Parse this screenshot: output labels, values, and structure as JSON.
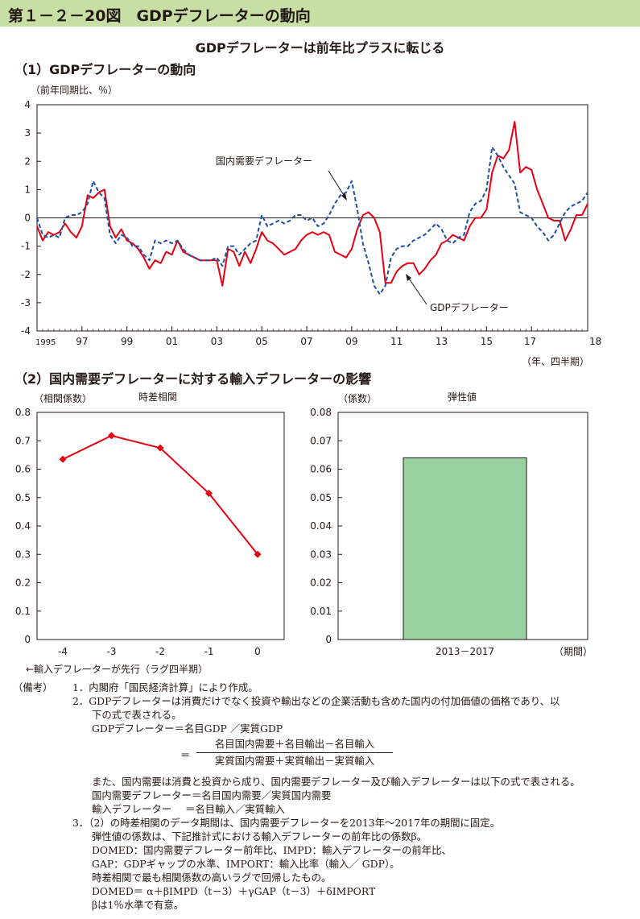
{
  "header": {
    "figure_title": "第１－２－20図　GDPデフレーターの動向",
    "headline": "GDPデフレーターは前年比プラスに転じる",
    "accent_color": "#c7dfa5"
  },
  "panel1": {
    "section_title": "（1）GDPデフレーターの動向",
    "y_unit": "（前年同期比、％）",
    "x_unit": "（年、四半期）"
  },
  "panel2": {
    "section_title": "（2）国内需要デフレーターに対する輸入デフレーターの影響",
    "left_title": "時差相関",
    "left_unit": "（相関係数）",
    "left_note": "←輸入デフレーターが先行（ラグ四半期）",
    "right_title": "弾性値",
    "right_unit": "（係数）",
    "right_xunit": "（期間）"
  },
  "chart_data": [
    {
      "type": "line",
      "ylim": [
        -4,
        4
      ],
      "yticks": [
        "4",
        "3",
        "2",
        "1",
        "0",
        "-1",
        "-2",
        "-3",
        "-4"
      ],
      "xticks": [
        "1995",
        "97",
        "99",
        "01",
        "03",
        "05",
        "07",
        "09",
        "11",
        "13",
        "15",
        "17",
        "18"
      ],
      "x_start": "1995 Q1",
      "grid": false,
      "series": [
        {
          "name": "GDPデフレーター",
          "color": "#e60012",
          "style": "solid",
          "values": [
            -0.3,
            -0.8,
            -0.5,
            -0.6,
            -0.5,
            -0.2,
            -0.5,
            -0.7,
            -0.3,
            0.8,
            0.7,
            0.9,
            1.0,
            -0.3,
            -0.7,
            -0.4,
            -0.8,
            -0.9,
            -1.1,
            -1.4,
            -1.8,
            -1.5,
            -1.6,
            -1.2,
            -1.3,
            -0.8,
            -1.2,
            -1.3,
            -1.4,
            -1.5,
            -1.5,
            -1.5,
            -1.5,
            -2.4,
            -1.1,
            -1.2,
            -1.7,
            -1.2,
            -1.6,
            -1.1,
            -0.5,
            -0.8,
            -0.9,
            -1.1,
            -1.3,
            -1.2,
            -1.1,
            -0.8,
            -0.6,
            -0.5,
            -0.6,
            -0.5,
            -0.6,
            -1.2,
            -1.3,
            -1.4,
            -1.1,
            -0.4,
            0.1,
            0.2,
            0.0,
            -0.5,
            -2.3,
            -2.3,
            -1.9,
            -1.7,
            -1.6,
            -1.6,
            -2.0,
            -1.8,
            -1.5,
            -1.3,
            -0.9,
            -0.8,
            -0.6,
            -0.7,
            -0.8,
            -0.3,
            0.0,
            0.0,
            0.3,
            1.6,
            2.2,
            2.1,
            2.4,
            3.4,
            1.6,
            1.8,
            1.7,
            1.0,
            0.5,
            0.0,
            -0.1,
            -0.1,
            -0.8,
            -0.4,
            0.1,
            0.1,
            0.5
          ]
        },
        {
          "name": "国内需要デフレーター",
          "color": "#1d50a2",
          "style": "dashed",
          "values": [
            0.0,
            -0.6,
            -0.7,
            -0.6,
            -0.7,
            0.0,
            0.1,
            0.1,
            0.2,
            0.5,
            1.3,
            0.9,
            0.7,
            -0.6,
            -0.9,
            -0.6,
            -0.7,
            -1.0,
            -1.0,
            -1.3,
            -1.5,
            -0.8,
            -0.9,
            -0.8,
            -0.9,
            -0.8,
            -1.1,
            -1.3,
            -1.4,
            -1.5,
            -1.5,
            -1.5,
            -1.4,
            -1.7,
            -1.0,
            -1.0,
            -1.3,
            -1.1,
            -0.9,
            -0.8,
            0.1,
            -0.3,
            -0.2,
            -0.1,
            -0.2,
            -0.1,
            0.1,
            0.1,
            -0.1,
            0.0,
            -0.3,
            -0.2,
            0.1,
            0.5,
            0.8,
            0.9,
            1.3,
            0.3,
            -0.9,
            -1.6,
            -2.4,
            -2.7,
            -2.4,
            -1.4,
            -1.1,
            -1.0,
            -1.0,
            -0.8,
            -0.7,
            -0.6,
            -0.4,
            -0.2,
            -0.4,
            -0.8,
            -0.9,
            -0.7,
            -0.6,
            0.2,
            0.5,
            0.6,
            1.0,
            2.5,
            2.2,
            1.8,
            1.5,
            1.2,
            0.2,
            0.1,
            0.0,
            -0.3,
            -0.5,
            -0.8,
            -0.6,
            -0.2,
            0.2,
            0.4,
            0.5,
            0.6,
            0.9
          ]
        }
      ],
      "annotations": [
        "国内需要デフレーター",
        "GDPデフレーター"
      ]
    },
    {
      "type": "line",
      "categories": [
        "-4",
        "-3",
        "-2",
        "-1",
        "0"
      ],
      "values": [
        0.635,
        0.718,
        0.675,
        0.515,
        0.3
      ],
      "ylim": [
        0,
        0.8
      ],
      "yticks": [
        "0.8",
        "0.7",
        "0.6",
        "0.5",
        "0.4",
        "0.3",
        "0.2",
        "0.1",
        "0"
      ],
      "color": "#e60012",
      "marker": "diamond"
    },
    {
      "type": "bar",
      "categories": [
        "2013－2017"
      ],
      "values": [
        0.064
      ],
      "ylim": [
        0,
        0.08
      ],
      "yticks": [
        "0.08",
        "0.07",
        "0.06",
        "0.05",
        "0.04",
        "0.03",
        "0.02",
        "0.01",
        "0"
      ],
      "color": "#99d1a0"
    }
  ],
  "notes": {
    "prefix": "（備考）",
    "n1": "1．内閣府「国民経済計算」により作成。",
    "n2a": "2．GDPデフレーターは消費だけでなく投資や輸出などの企業活動も含めた国内の付加価値の価格であり、以",
    "n2b": "下の式で表される。",
    "f1": "GDPデフレーター＝名目GDP ／実質GDP",
    "f2_eq": "＝",
    "f2_num": "名目国内需要＋名目輸出－名目輸入",
    "f2_den": "実質国内需要＋実質輸出－実質輸入",
    "n2c": "また、国内需要は消費と投資から成り、国内需要デフレーター及び輸入デフレーターは以下の式で表される。",
    "f3": "国内需要デフレーター＝名目国内需要／実質国内需要",
    "f4a": "輸入デフレーター",
    "f4b": "＝名目輸入／実質輸入",
    "n3a": "3．（2）の時差相関のデータ期間は、国内需要デフレーターを2013年～2017年の期間に固定。",
    "n3b": "弾性値の係数は、下記推計式における輸入デフレーターの前年比の係数β。",
    "n3c": "DOMED：国内需要デフレーター前年比、IMPD：輸入デフレーターの前年比、",
    "n3d": "GAP：GDPギャップの水準、IMPORT：輸入比率（輸入／ GDP）。",
    "n3e": "時差相関で最も相関係数の高いラグで回帰したもの。",
    "n3f": "DOMED＝ α＋βIMPD（t－3）＋γGAP（t－3）＋δIMPORT",
    "n3g": "βは1％水準で有意。"
  }
}
